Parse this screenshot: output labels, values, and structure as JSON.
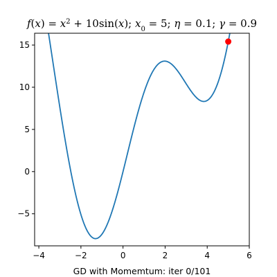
{
  "chart_data": {
    "type": "line",
    "title": {
      "parts": [
        {
          "t": "f",
          "i": true
        },
        {
          "t": "("
        },
        {
          "t": "x",
          "i": true
        },
        {
          "t": ") = "
        },
        {
          "t": "x",
          "i": true
        },
        {
          "t": "2",
          "sup": true
        },
        {
          "t": " + 10sin("
        },
        {
          "t": "x",
          "i": true
        },
        {
          "t": "); "
        },
        {
          "t": "x",
          "i": true
        },
        {
          "t": "0",
          "sub": true
        },
        {
          "t": " = 5; "
        },
        {
          "t": "η",
          "i": true
        },
        {
          "t": " = 0.1; "
        },
        {
          "t": "γ",
          "i": true
        },
        {
          "t": " = 0.9"
        }
      ]
    },
    "xlabel": "GD with Momemtum: iter 0/101",
    "ylabel": "",
    "xlim": [
      -4.2,
      6.0
    ],
    "ylim": [
      -8.8,
      16.4
    ],
    "xticks": [
      -4,
      -2,
      0,
      2,
      4,
      6
    ],
    "yticks": [
      -5,
      0,
      5,
      10,
      15
    ],
    "ytick_labels": [
      "−5",
      "0",
      "5",
      "10",
      "15"
    ],
    "grid": false,
    "series": [
      {
        "kind": "function",
        "expr": "x^2 + 10*sin(x)",
        "x_range": [
          -4.2,
          6.0
        ],
        "color": "#1f77b4"
      }
    ],
    "points": [
      {
        "x": 5.0,
        "y": 15.41,
        "color": "#ff0000"
      }
    ]
  }
}
